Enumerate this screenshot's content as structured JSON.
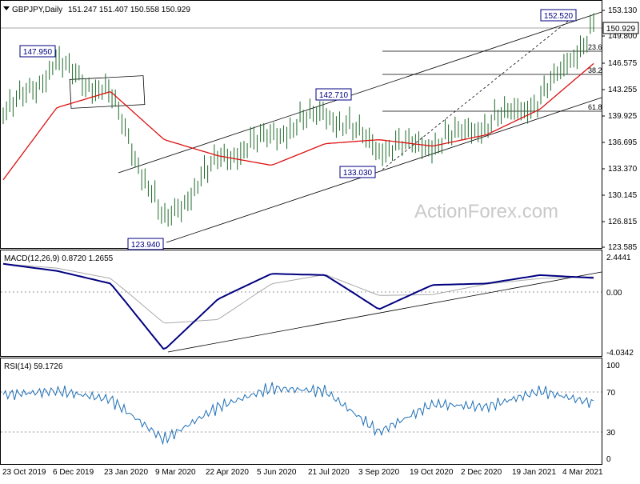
{
  "header": {
    "symbol": "GBPJPY,Daily",
    "ohlc": "151.247 151.407 150.558 150.929"
  },
  "watermark": "ActionForex.com",
  "price_panel": {
    "y_ticks": [
      "153.130",
      "149.800",
      "146.575",
      "143.255",
      "139.925",
      "136.695",
      "133.370",
      "130.145",
      "126.815",
      "123.585"
    ],
    "current_price_label": "150.929",
    "swing_labels": [
      {
        "text": "147.950"
      },
      {
        "text": "142.710"
      },
      {
        "text": "133.030"
      },
      {
        "text": "123.940"
      },
      {
        "text": "152.520"
      }
    ],
    "fib_levels": [
      {
        "label": "23.6",
        "price": 147.91
      },
      {
        "label": "38.2",
        "price": 145.07
      },
      {
        "label": "61.8",
        "price": 140.0
      }
    ]
  },
  "macd_panel": {
    "label": "MACD(12,26,9) 0.8720 1.2655",
    "y_ticks": [
      "2.4441",
      "0.00",
      "-4.0342"
    ]
  },
  "rsi_panel": {
    "label": "RSI(14) 59.1726",
    "y_ticks": [
      "100",
      "70",
      "30",
      "0"
    ]
  },
  "x_axis": {
    "labels": [
      "23 Oct 2019",
      "6 Dec 2019",
      "23 Jan 2020",
      "9 Mar 2020",
      "22 Apr 2020",
      "5 Jun 2020",
      "21 Jul 2020",
      "3 Sep 2020",
      "19 Oct 2020",
      "2 Dec 2020",
      "19 Jan 2021",
      "4 Mar 2021"
    ]
  },
  "colors": {
    "ma_line": "#dd1111",
    "macd_line": "#000080",
    "signal_line": "#aaaaaa",
    "price_bars": "#1f6b2a",
    "trend_lines": "#000000",
    "label_border": "#000080"
  },
  "chart_data": {
    "type": "line",
    "title": "GBPJPY,Daily",
    "price_range": [
      123.585,
      153.13
    ],
    "macd_range": [
      -4.0342,
      2.4441
    ],
    "rsi_range": [
      0,
      100
    ],
    "price_close_series": {
      "x": [
        "23 Oct 2019",
        "6 Dec 2019",
        "23 Jan 2020",
        "9 Mar 2020",
        "22 Apr 2020",
        "5 Jun 2020",
        "21 Jul 2020",
        "3 Sep 2020",
        "19 Oct 2020",
        "2 Dec 2020",
        "19 Jan 2021",
        "4 Mar 2021"
      ],
      "values": [
        140.0,
        146.5,
        142.5,
        126.5,
        134.5,
        137.5,
        140.5,
        136.0,
        136.5,
        139.0,
        142.0,
        151.0
      ]
    },
    "swing_points": [
      {
        "date": "6 Dec 2019",
        "price": 147.95
      },
      {
        "date": "9 Mar 2020",
        "price": 123.94
      },
      {
        "date": "21 Jul 2020",
        "price": 142.71
      },
      {
        "date": "3 Sep 2020",
        "price": 133.03
      },
      {
        "date": "4 Mar 2021",
        "price": 152.52
      }
    ],
    "ma_series": {
      "x": [
        "23 Oct 2019",
        "6 Dec 2019",
        "23 Jan 2020",
        "9 Mar 2020",
        "22 Apr 2020",
        "5 Jun 2020",
        "21 Jul 2020",
        "3 Sep 2020",
        "19 Oct 2020",
        "2 Dec 2020",
        "19 Jan 2021",
        "4 Mar 2021"
      ],
      "values": [
        132.0,
        141.0,
        143.0,
        137.0,
        135.0,
        133.8,
        136.5,
        137.0,
        136.2,
        137.6,
        140.8,
        146.5
      ]
    },
    "macd_series": {
      "x": [
        "23 Oct 2019",
        "6 Dec 2019",
        "23 Jan 2020",
        "9 Mar 2020",
        "22 Apr 2020",
        "5 Jun 2020",
        "21 Jul 2020",
        "3 Sep 2020",
        "19 Oct 2020",
        "2 Dec 2020",
        "19 Jan 2021",
        "4 Mar 2021"
      ],
      "values": [
        2.0,
        1.5,
        0.6,
        -4.0,
        -0.5,
        1.3,
        1.2,
        -1.2,
        0.5,
        0.6,
        1.2,
        1.0
      ]
    },
    "rsi_series": {
      "x": [
        "23 Oct 2019",
        "6 Dec 2019",
        "23 Jan 2020",
        "9 Mar 2020",
        "22 Apr 2020",
        "5 Jun 2020",
        "21 Jul 2020",
        "3 Sep 2020",
        "19 Oct 2020",
        "2 Dec 2020",
        "19 Jan 2021",
        "4 Mar 2021"
      ],
      "values": [
        68,
        72,
        63,
        20,
        55,
        75,
        72,
        28,
        58,
        55,
        72,
        59
      ]
    }
  }
}
